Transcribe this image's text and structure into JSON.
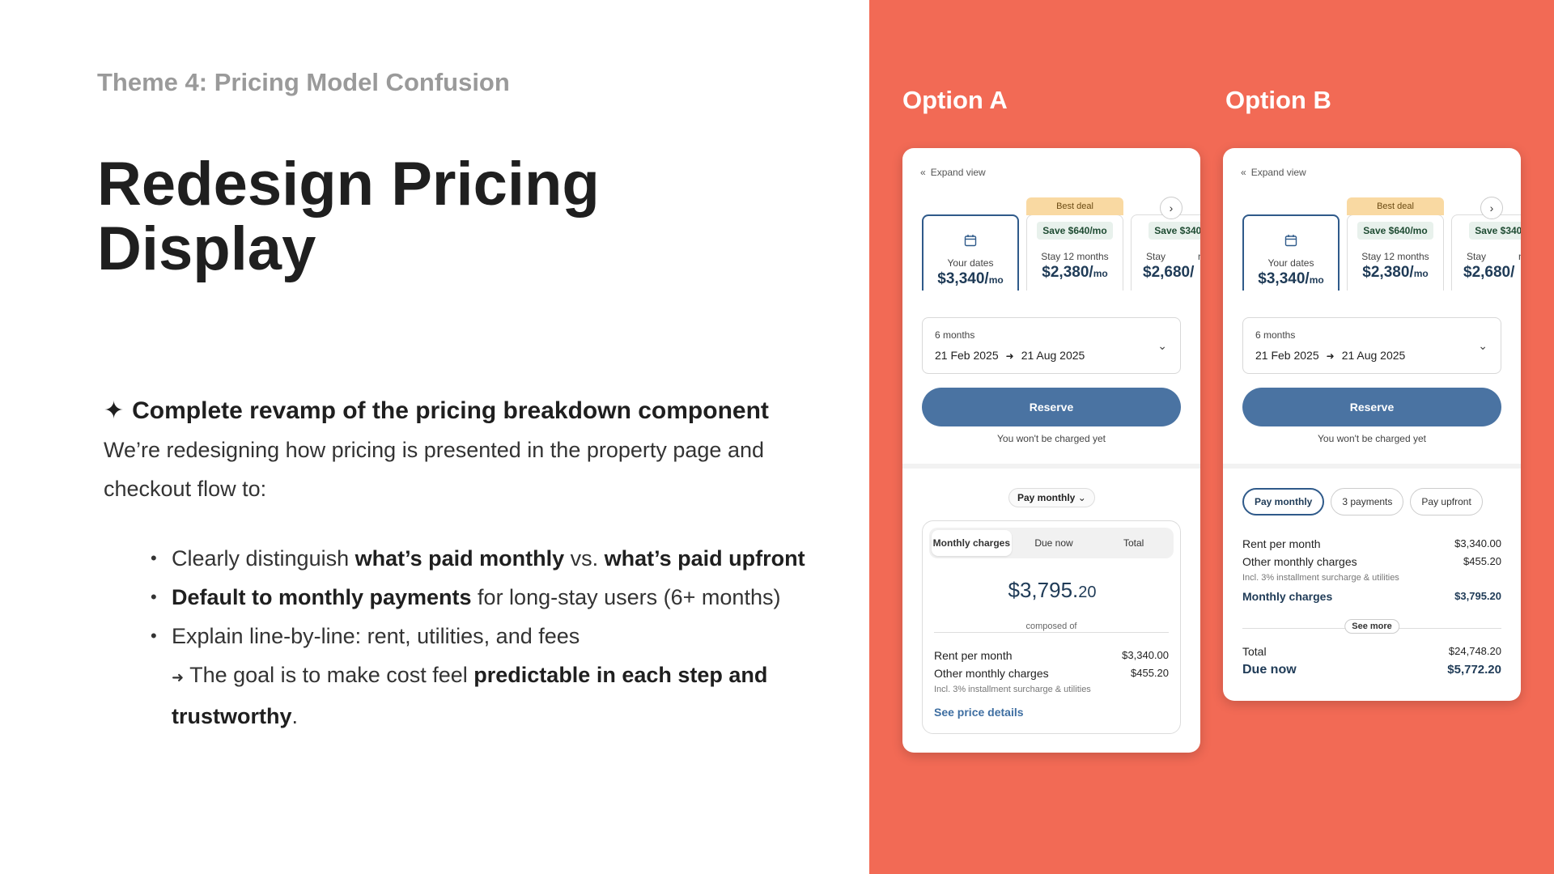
{
  "slide": {
    "theme": "Theme 4: Pricing Model Confusion",
    "title_line1": "Redesign Pricing",
    "title_line2": "Display",
    "lead_icon": "✦",
    "lead": "Complete revamp of the pricing breakdown component",
    "intro": "We’re redesigning how pricing is presented in the property page and checkout flow to:",
    "bullet1": {
      "t1": "Clearly distinguish ",
      "b1": "what’s paid monthly",
      "t2": " vs. ",
      "b2": "what’s paid upfront"
    },
    "bullet2": {
      "b1": "Default to monthly payments",
      "t1": " for long-stay users (6+ months)"
    },
    "bullet3": "Explain line-by-line: rent, utilities, and fees",
    "goal": {
      "arrow": "➜",
      "t1": " The goal is to make cost feel ",
      "b1": "predictable in each step and trustworthy",
      "t2": "."
    }
  },
  "options": {
    "a_title": "Option A",
    "b_title": "Option B"
  },
  "card": {
    "expand_label": "Expand view",
    "best_deal": "Best deal",
    "tile1": {
      "label": "Your dates",
      "price": "$3,340/",
      "unit": "mo"
    },
    "tile2": {
      "save": "Save $640/mo",
      "label": "Stay 12 months",
      "price": "$2,380/",
      "unit": "mo"
    },
    "tile3": {
      "save": "Save $340/",
      "label": "Stay",
      "label_tail": "nt",
      "price": "$2,680/"
    },
    "duration": "6 months",
    "date_from": "21 Feb 2025",
    "date_to": "21 Aug 2025",
    "reserve": "Reserve",
    "no_charge": "You won't be charged yet"
  },
  "option_a": {
    "pay_pill": "Pay monthly",
    "tabs": [
      "Monthly charges",
      "Due now",
      "Total"
    ],
    "amount": "$3,795.",
    "amount_cents": "20",
    "composed_of": "composed of",
    "rent_label": "Rent per month",
    "rent_value": "$3,340.00",
    "other_label": "Other monthly charges",
    "other_value": "$455.20",
    "note": "Incl. 3% installment surcharge & utilities",
    "see_details": "See price details"
  },
  "option_b": {
    "tabs": [
      "Pay monthly",
      "3 payments",
      "Pay upfront"
    ],
    "rent_label": "Rent per month",
    "rent_value": "$3,340.00",
    "other_label": "Other monthly charges",
    "other_value": "$455.20",
    "note": "Incl. 3% installment surcharge & utilities",
    "monthly_label": "Monthly charges",
    "monthly_value": "$3,795.20",
    "see_more": "See more",
    "total_label": "Total",
    "total_value": "$24,748.20",
    "due_label": "Due now",
    "due_value": "$5,772.20"
  },
  "colors": {
    "accent_panel": "#f26a55",
    "primary_button": "#4a73a2",
    "best_deal": "#f9d9a2"
  },
  "icons": {
    "expand": "double-chevron-left-icon",
    "calendar": "calendar-icon",
    "next": "chevron-right-icon",
    "date_arrow": "arrow-right-icon",
    "dropdown": "chevron-down-icon"
  }
}
